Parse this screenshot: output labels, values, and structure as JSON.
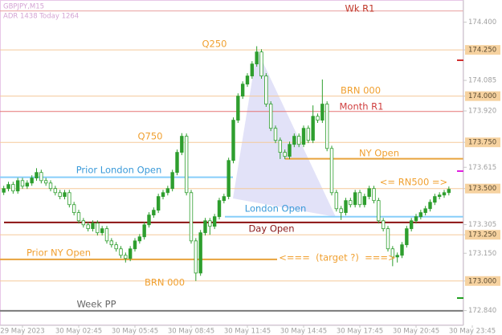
{
  "chart_data": {
    "type": "candlestick",
    "symbol": "GBPJPY,M15",
    "info": "ADR 1438  Today 1264",
    "annotation": "<===  (target ?)  ===>",
    "up_color": "#2e9e2e",
    "down_color": "#ffffff",
    "wick_color": "#2e9e2e",
    "ylim": [
      172.76,
      174.52
    ],
    "yticks": [
      {
        "value": 174.4,
        "label": "174.400"
      },
      {
        "value": 174.25,
        "label": "174.250",
        "highlight": true
      },
      {
        "value": 174.085,
        "label": "174.085"
      },
      {
        "value": 174.0,
        "label": "174.000",
        "highlight": true
      },
      {
        "value": 173.92,
        "label": "173.920"
      },
      {
        "value": 173.75,
        "label": "173.750",
        "highlight": true
      },
      {
        "value": 173.615,
        "label": "173.615"
      },
      {
        "value": 173.5,
        "label": "173.500",
        "highlight": true
      },
      {
        "value": 173.305,
        "label": "173.305"
      },
      {
        "value": 173.25,
        "label": "173.250",
        "highlight": true
      },
      {
        "value": 173.15,
        "label": "173.150"
      },
      {
        "value": 173.0,
        "label": "173.000",
        "highlight": true
      },
      {
        "value": 172.84,
        "label": "172.840"
      }
    ],
    "xticks": [
      {
        "value": 4,
        "label": "29 May 2023"
      },
      {
        "value": 16,
        "label": "30 May 02:45"
      },
      {
        "value": 28,
        "label": "30 May 05:45"
      },
      {
        "value": 40,
        "label": "30 May 08:45"
      },
      {
        "value": 52,
        "label": "30 May 11:45"
      },
      {
        "value": 64,
        "label": "30 May 14:45"
      },
      {
        "value": 76,
        "label": "30 May 17:45"
      },
      {
        "value": 88,
        "label": "30 May 20:45"
      },
      {
        "value": 100,
        "label": "30 May 23:45"
      }
    ],
    "levels": [
      {
        "name": "Wk R1",
        "value": 174.461,
        "color": "#e8a0a0",
        "label_color": "#c0392b"
      },
      {
        "name": "Q250",
        "value": 174.25,
        "color": "#f5c99a",
        "label_color": "#f0a030"
      },
      {
        "name": "BRN 000",
        "value": 174.0,
        "color": "#f5c99a",
        "label_color": "#f0a030"
      },
      {
        "name": "Month R1",
        "value": 173.917,
        "color": "#e57373",
        "label_color": "#d04040"
      },
      {
        "name": "Q750",
        "value": 173.75,
        "color": "#f5c99a",
        "label_color": "#f0a030"
      },
      {
        "name": "NY Open",
        "value": 173.661,
        "color": "#e8a33d",
        "label_color": "#f0a030"
      },
      {
        "name": "Prior London Open",
        "value": 173.561,
        "color": "#87cefa",
        "label_color": "#3a9ad9"
      },
      {
        "name": "<= RN500 =>",
        "value": 173.5,
        "color": "#f5c99a",
        "label_color": "#f0a030"
      },
      {
        "name": "London Open",
        "value": 173.348,
        "color": "#87cefa",
        "label_color": "#3a9ad9"
      },
      {
        "name": "Day Open",
        "value": 173.317,
        "color": "#8b1010",
        "label_color": "#8b1a1a"
      },
      {
        "value": 173.25,
        "color": "#f5c99a"
      },
      {
        "name": "Prior NY Open",
        "value": 173.117,
        "color": "#e8a33d",
        "label_color": "#f0a030"
      },
      {
        "name": "BRN 000",
        "value": 173.0,
        "color": "#f5c99a",
        "label_color": "#f0a030"
      },
      {
        "name": "Week PP",
        "value": 172.839,
        "color": "#7a7a7a",
        "label_color": "#666666"
      }
    ],
    "open": [
      173.48,
      173.5,
      173.522,
      173.487,
      173.543,
      173.513,
      173.53,
      173.557,
      173.587,
      173.543,
      173.53,
      173.5,
      173.478,
      173.457,
      173.478,
      173.413,
      173.37,
      173.326,
      173.304,
      173.283,
      173.313,
      173.261,
      173.283,
      173.217,
      173.196,
      173.174,
      173.139,
      173.122,
      173.174,
      173.217,
      173.239,
      173.304,
      173.357,
      173.383,
      173.457,
      173.478,
      173.5,
      173.587,
      173.696,
      173.783,
      173.478,
      173.217,
      173.043,
      173.261,
      173.326,
      173.296,
      173.348,
      173.435,
      173.457,
      173.652,
      173.87,
      174.0,
      174.065,
      174.109,
      174.174,
      174.239,
      174.109,
      173.957,
      173.826,
      173.761,
      173.696,
      173.674,
      173.739,
      173.783,
      173.739,
      173.826,
      173.761,
      173.891,
      173.87,
      173.957,
      173.717,
      173.478,
      173.391,
      173.37,
      173.435,
      173.413,
      173.478,
      173.413,
      173.457,
      173.5,
      173.435,
      173.326,
      173.283,
      173.174,
      173.13,
      173.139,
      173.196,
      173.283,
      173.326,
      173.348,
      173.37,
      173.391,
      173.426,
      173.457,
      173.465,
      173.478
    ],
    "high": [
      173.515,
      173.537,
      173.537,
      173.558,
      173.558,
      173.545,
      173.572,
      173.61,
      173.602,
      173.558,
      173.545,
      173.515,
      173.493,
      173.493,
      173.493,
      173.428,
      173.385,
      173.341,
      173.319,
      173.328,
      173.328,
      173.298,
      173.298,
      173.232,
      173.211,
      173.189,
      173.154,
      173.189,
      173.232,
      173.254,
      173.319,
      173.372,
      173.398,
      173.472,
      173.493,
      173.515,
      173.602,
      173.711,
      173.8,
      173.798,
      173.493,
      173.232,
      173.276,
      173.341,
      173.341,
      173.363,
      173.45,
      173.472,
      173.667,
      173.885,
      174.015,
      174.08,
      174.124,
      174.189,
      174.27,
      174.254,
      174.124,
      173.972,
      173.841,
      173.776,
      173.711,
      173.754,
      173.798,
      173.798,
      173.841,
      173.841,
      173.95,
      173.906,
      174.09,
      173.972,
      173.732,
      173.493,
      173.406,
      173.45,
      173.45,
      173.493,
      173.493,
      173.472,
      173.515,
      173.515,
      173.45,
      173.341,
      173.298,
      173.189,
      173.154,
      173.211,
      173.298,
      173.341,
      173.363,
      173.385,
      173.406,
      173.441,
      173.472,
      173.48,
      173.493,
      173.511
    ],
    "low": [
      173.465,
      173.485,
      173.472,
      173.472,
      173.498,
      173.498,
      173.515,
      173.542,
      173.528,
      173.515,
      173.485,
      173.463,
      173.442,
      173.442,
      173.398,
      173.355,
      173.311,
      173.289,
      173.268,
      173.268,
      173.246,
      173.246,
      173.202,
      173.181,
      173.159,
      173.124,
      173.1,
      173.107,
      173.159,
      173.202,
      173.224,
      173.289,
      173.342,
      173.368,
      173.442,
      173.463,
      173.485,
      173.572,
      173.681,
      173.463,
      173.202,
      173.0,
      173.028,
      173.246,
      173.25,
      173.281,
      173.333,
      173.42,
      173.442,
      173.637,
      173.855,
      173.985,
      174.05,
      174.094,
      174.159,
      174.094,
      173.942,
      173.811,
      173.746,
      173.66,
      173.659,
      173.659,
      173.724,
      173.724,
      173.724,
      173.746,
      173.746,
      173.855,
      173.855,
      173.702,
      173.463,
      173.376,
      173.33,
      173.355,
      173.398,
      173.398,
      173.398,
      173.398,
      173.442,
      173.42,
      173.311,
      173.268,
      173.159,
      173.08,
      173.1,
      173.124,
      173.181,
      173.268,
      173.311,
      173.333,
      173.355,
      173.376,
      173.411,
      173.442,
      173.45,
      173.463
    ],
    "close": [
      173.5,
      173.522,
      173.487,
      173.543,
      173.513,
      173.53,
      173.557,
      173.587,
      173.543,
      173.53,
      173.5,
      173.478,
      173.457,
      173.478,
      173.413,
      173.37,
      173.326,
      173.304,
      173.283,
      173.313,
      173.261,
      173.283,
      173.217,
      173.196,
      173.174,
      173.139,
      173.122,
      173.174,
      173.217,
      173.239,
      173.304,
      173.357,
      173.383,
      173.457,
      173.478,
      173.5,
      173.587,
      173.696,
      173.783,
      173.478,
      173.217,
      173.043,
      173.261,
      173.326,
      173.296,
      173.348,
      173.435,
      173.457,
      173.652,
      173.87,
      174.0,
      174.065,
      174.109,
      174.174,
      174.239,
      174.109,
      173.957,
      173.826,
      173.761,
      173.696,
      173.674,
      173.739,
      173.783,
      173.739,
      173.826,
      173.761,
      173.891,
      173.87,
      173.957,
      173.717,
      173.478,
      173.391,
      173.37,
      173.435,
      173.413,
      173.478,
      173.413,
      173.457,
      173.5,
      173.435,
      173.326,
      173.283,
      173.174,
      173.13,
      173.139,
      173.196,
      173.283,
      173.326,
      173.348,
      173.37,
      173.391,
      173.426,
      173.457,
      173.465,
      173.478,
      173.496
    ]
  }
}
